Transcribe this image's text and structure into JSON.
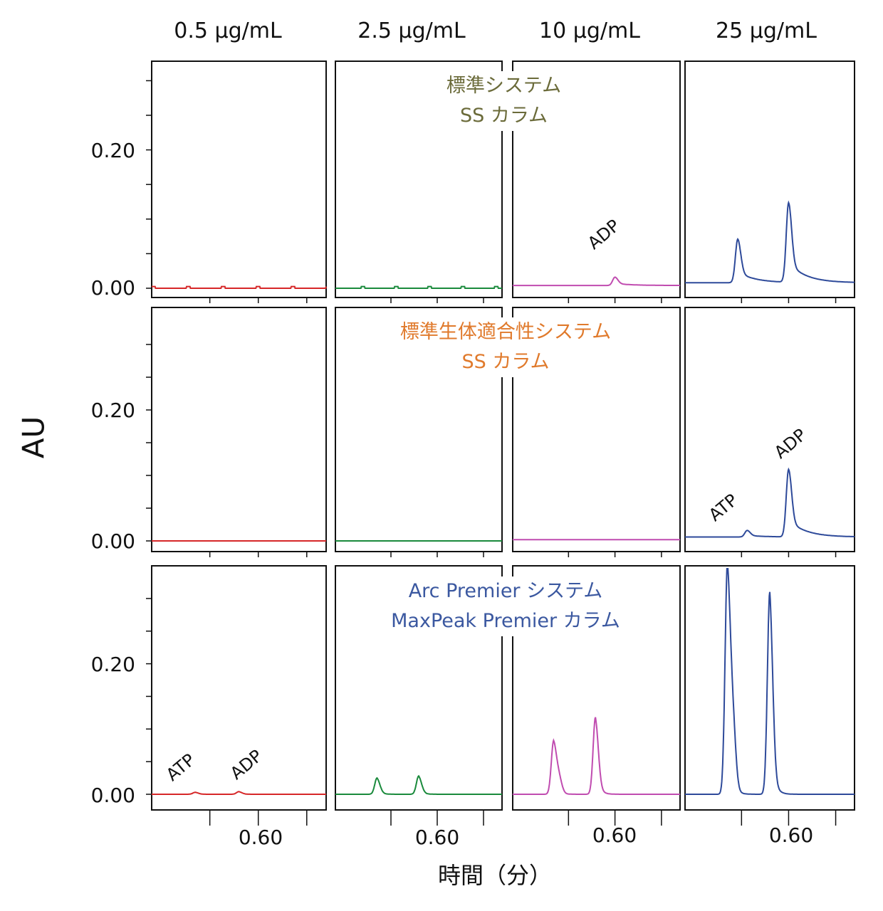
{
  "columns": [
    "0.5 µg/mL",
    "2.5 µg/mL",
    "10 µg/mL",
    "25 µg/mL"
  ],
  "y_axis_label": "AU",
  "x_axis_label": "時間（分）",
  "y_tick_labels": [
    "0.20",
    "0.00"
  ],
  "x_tick_label": "0.60",
  "rows": [
    {
      "title_line1": "標準システム",
      "title_line2": "SS カラム",
      "color": "#6b6b3a"
    },
    {
      "title_line1": "標準生体適合性システム",
      "title_line2": "SS カラム",
      "color": "#e07a2c"
    },
    {
      "title_line1": "Arc Premier システム",
      "title_line2": "MaxPeak Premier カラム",
      "color": "#3b58a0"
    }
  ],
  "trace_colors": [
    "#d62728",
    "#1a8a3c",
    "#c04cb0",
    "#2e4a9a"
  ],
  "peak_labels": {
    "atp": "ATP",
    "adp": "ADP"
  },
  "chart_data": {
    "type": "line",
    "title": "",
    "xlabel": "時間（分）",
    "ylabel": "AU",
    "ylim": [
      -0.01,
      0.31
    ],
    "xlim": [
      0.49,
      0.67
    ],
    "x_tick_values": [
      0.55,
      0.6,
      0.65
    ],
    "y_tick_values": [
      0.0,
      0.05,
      0.1,
      0.15,
      0.2,
      0.25,
      0.3
    ],
    "series": [
      {
        "system": "標準システム SS カラム",
        "concentration": "0.5 µg/mL",
        "peaks": [],
        "noise": true,
        "baseline": 0.0
      },
      {
        "system": "標準システム SS カラム",
        "concentration": "2.5 µg/mL",
        "peaks": [],
        "noise": true,
        "baseline": 0.0
      },
      {
        "system": "標準システム SS カラム",
        "concentration": "10 µg/mL",
        "peaks": [
          {
            "label": "ADP",
            "rt": 0.6,
            "height": 0.012
          }
        ],
        "baseline": 0.004
      },
      {
        "system": "標準システム SS カラム",
        "concentration": "25 µg/mL",
        "peaks": [
          {
            "label": "ATP",
            "rt": 0.546,
            "height": 0.063
          },
          {
            "label": "ADP",
            "rt": 0.6,
            "height": 0.115
          }
        ],
        "baseline": 0.008
      },
      {
        "system": "標準生体適合性システム SS カラム",
        "concentration": "0.5 µg/mL",
        "peaks": [],
        "baseline": 0.0
      },
      {
        "system": "標準生体適合性システム SS カラム",
        "concentration": "2.5 µg/mL",
        "peaks": [],
        "baseline": 0.0
      },
      {
        "system": "標準生体適合性システム SS カラム",
        "concentration": "10 µg/mL",
        "peaks": [],
        "baseline": 0.002
      },
      {
        "system": "標準生体適合性システム SS カラム",
        "concentration": "25 µg/mL",
        "peaks": [
          {
            "label": "ATP",
            "rt": 0.556,
            "height": 0.01
          },
          {
            "label": "ADP",
            "rt": 0.6,
            "height": 0.103
          }
        ],
        "baseline": 0.006
      },
      {
        "system": "Arc Premier システム MaxPeak Premier カラム",
        "concentration": "0.5 µg/mL",
        "peaks": [
          {
            "label": "ATP",
            "rt": 0.535,
            "height": 0.003
          },
          {
            "label": "ADP",
            "rt": 0.58,
            "height": 0.004
          }
        ],
        "baseline": 0.0
      },
      {
        "system": "Arc Premier システム MaxPeak Premier カラム",
        "concentration": "2.5 µg/mL",
        "peaks": [
          {
            "label": "ATP",
            "rt": 0.535,
            "height": 0.025
          },
          {
            "label": "ADP",
            "rt": 0.58,
            "height": 0.028
          }
        ],
        "baseline": 0.0
      },
      {
        "system": "Arc Premier システム MaxPeak Premier カラム",
        "concentration": "10 µg/mL",
        "peaks": [
          {
            "label": "ATP",
            "rt": 0.534,
            "height": 0.08
          },
          {
            "label": "ADP",
            "rt": 0.579,
            "height": 0.118
          }
        ],
        "baseline": 0.0
      },
      {
        "system": "Arc Premier システム MaxPeak Premier カラム",
        "concentration": "25 µg/mL",
        "peaks": [
          {
            "label": "ATP",
            "rt": 0.535,
            "height": 0.345
          },
          {
            "label": "ADP",
            "rt": 0.58,
            "height": 0.31
          }
        ],
        "baseline": 0.0
      }
    ]
  }
}
